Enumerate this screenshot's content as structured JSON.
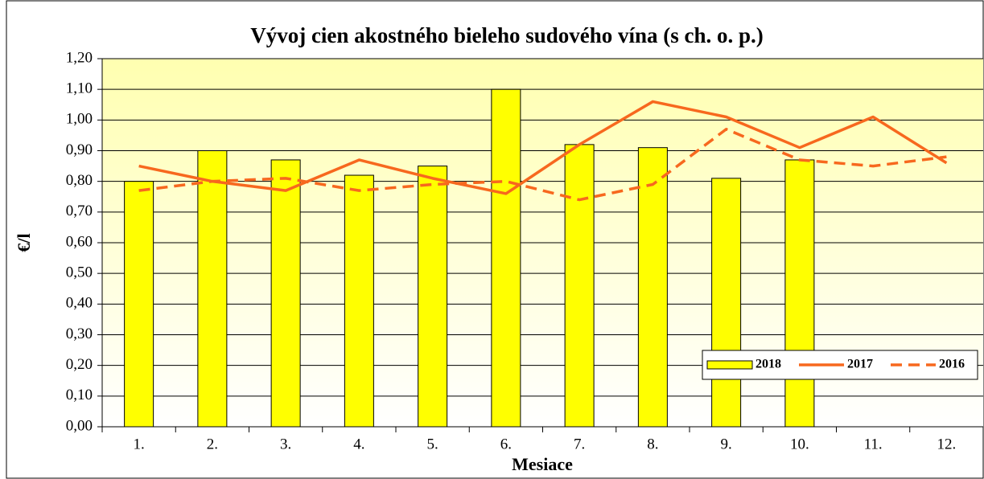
{
  "chart_data": {
    "type": "bar-line",
    "title": "Vývoj cien akostného bieleho sudového vína (s ch. o. p.)",
    "y_label": "€/l",
    "x_label": "Mesiace",
    "categories": [
      "1.",
      "2.",
      "3.",
      "4.",
      "5.",
      "6.",
      "7.",
      "8.",
      "9.",
      "10.",
      "11.",
      "12."
    ],
    "series": [
      {
        "name": "2018",
        "type": "bar",
        "color": "#ffff00",
        "values": [
          0.8,
          0.9,
          0.87,
          0.82,
          0.85,
          1.1,
          0.92,
          0.91,
          0.81,
          0.87,
          null,
          null
        ]
      },
      {
        "name": "2017",
        "type": "line",
        "style": "solid",
        "color": "#f7681e",
        "values": [
          0.85,
          0.8,
          0.77,
          0.87,
          0.81,
          0.76,
          0.92,
          1.06,
          1.01,
          0.91,
          1.01,
          0.86
        ]
      },
      {
        "name": "2016",
        "type": "line",
        "style": "dashed",
        "color": "#f7681e",
        "values": [
          0.77,
          0.8,
          0.81,
          0.77,
          0.79,
          0.8,
          0.74,
          0.79,
          0.97,
          0.87,
          0.85,
          0.88
        ]
      }
    ],
    "ylim": [
      0,
      1.2
    ],
    "yticks": [
      {
        "value": 0,
        "label": "0,00"
      },
      {
        "value": 0.1,
        "label": "0,10"
      },
      {
        "value": 0.2,
        "label": "0,20"
      },
      {
        "value": 0.3,
        "label": "0,30"
      },
      {
        "value": 0.4,
        "label": "0,40"
      },
      {
        "value": 0.5,
        "label": "0,50"
      },
      {
        "value": 0.6,
        "label": "0,60"
      },
      {
        "value": 0.7,
        "label": "0,70"
      },
      {
        "value": 0.8,
        "label": "0,80"
      },
      {
        "value": 0.9,
        "label": "0,90"
      },
      {
        "value": 1.0,
        "label": "1,00"
      },
      {
        "value": 1.1,
        "label": "1,10"
      },
      {
        "value": 1.2,
        "label": "1,20"
      }
    ],
    "grid": true,
    "legend": "lower right"
  }
}
